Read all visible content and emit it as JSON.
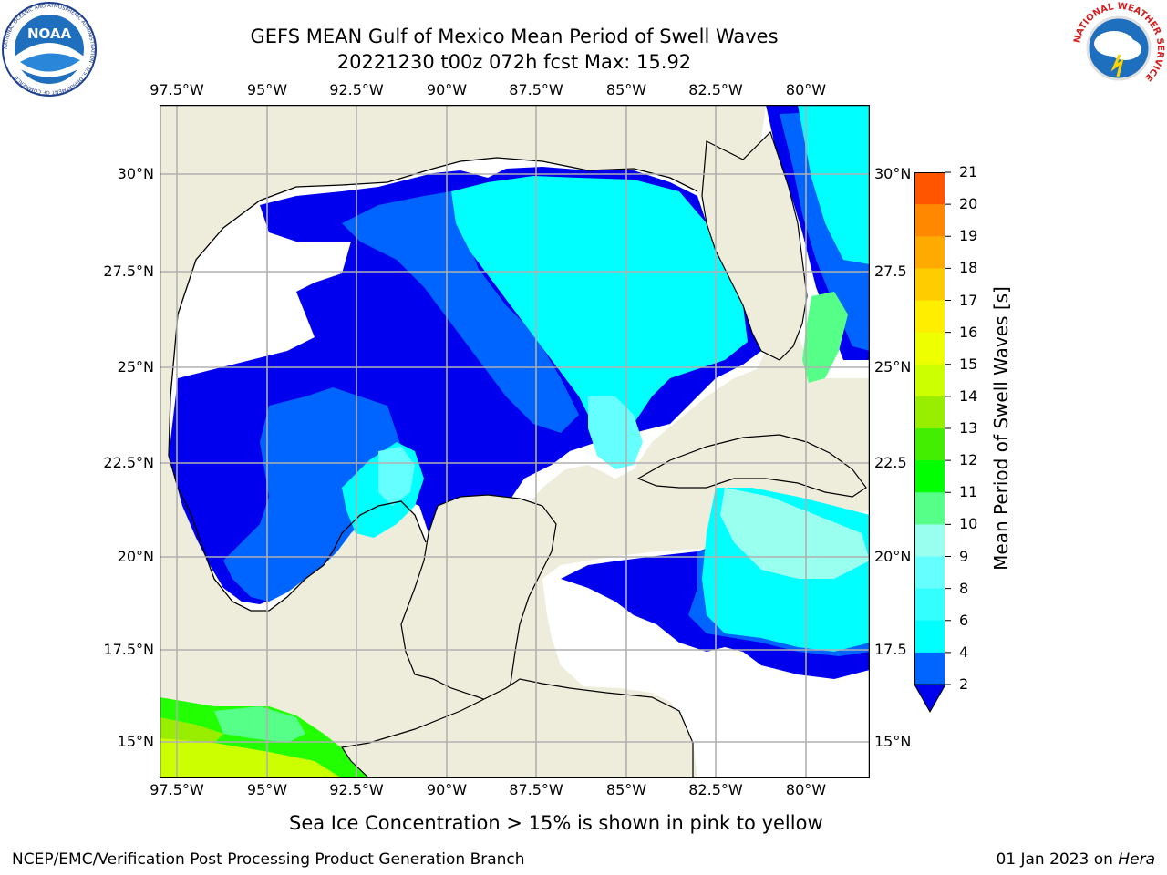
{
  "title": {
    "line1": "GEFS MEAN Gulf of Mexico Mean Period of Swell Waves",
    "line2": "20221230 t00z 072h fcst   Max: 15.92"
  },
  "logos": {
    "noaa": {
      "text": "NOAA",
      "ring_text": "NATIONAL OCEANIC AND ATMOSPHERIC ADMINISTRATION · U.S. DEPARTMENT OF COMMERCE",
      "color": "#1f6fbf"
    },
    "nws": {
      "ring_text": "NATIONAL WEATHER SERVICE",
      "color": "#d42020"
    }
  },
  "map": {
    "lon_labels": [
      "97.5°W",
      "95°W",
      "92.5°W",
      "90°W",
      "87.5°W",
      "85°W",
      "82.5°W",
      "80°W"
    ],
    "lat_labels_left": [
      "30°N",
      "27.5°N",
      "25°N",
      "22.5°N",
      "20°N",
      "17.5°N",
      "15°N"
    ],
    "lat_labels_right": [
      "30°N",
      "27.5",
      "25°N",
      "22.5",
      "20°N",
      "17.5",
      "15°N"
    ],
    "land_color": "#eeeddc",
    "grid_color": "#b0b0b0"
  },
  "colorbar": {
    "label": "Mean Period of Swell Waves [s]",
    "ticks": [
      "2",
      "4",
      "6",
      "8",
      "9",
      "10",
      "11",
      "12",
      "13",
      "14",
      "15",
      "16",
      "17",
      "18",
      "19",
      "20",
      "21"
    ],
    "colors": [
      "#0064ff",
      "#00ffff",
      "#33ffff",
      "#66ffff",
      "#99ffee",
      "#55ff88",
      "#00ff00",
      "#44ee00",
      "#99ee00",
      "#ccff00",
      "#eeff00",
      "#ffee00",
      "#ffcc00",
      "#ffaa00",
      "#ff8800",
      "#ff5500",
      "#ff2200",
      "#ff0000"
    ],
    "extend_color": "#0000ee"
  },
  "note": "Sea Ice Concentration > 15% is shown in pink to yellow",
  "footer": {
    "left": "NCEP/EMC/Verification Post Processing Product Generation Branch",
    "right_prefix": "01 Jan 2023 on ",
    "right_host": "Hera"
  }
}
